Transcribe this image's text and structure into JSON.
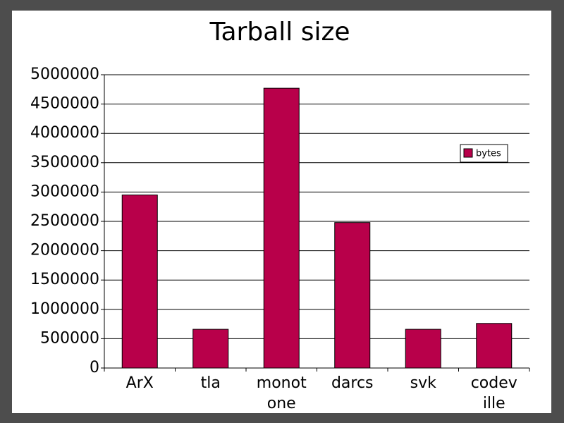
{
  "chart_data": {
    "type": "bar",
    "title": "Tarball size",
    "categories": [
      "ArX",
      "tla",
      "monotone",
      "darcs",
      "svk",
      "codeville"
    ],
    "series": [
      {
        "name": "bytes",
        "color": "#b8004a",
        "values": [
          2950000,
          660000,
          4770000,
          2480000,
          660000,
          760000
        ]
      }
    ],
    "ylim": [
      0,
      5000000
    ],
    "yticks": [
      0,
      500000,
      1000000,
      1500000,
      2000000,
      2500000,
      3000000,
      3500000,
      4000000,
      4500000,
      5000000
    ],
    "grid": true,
    "legend": "right"
  }
}
